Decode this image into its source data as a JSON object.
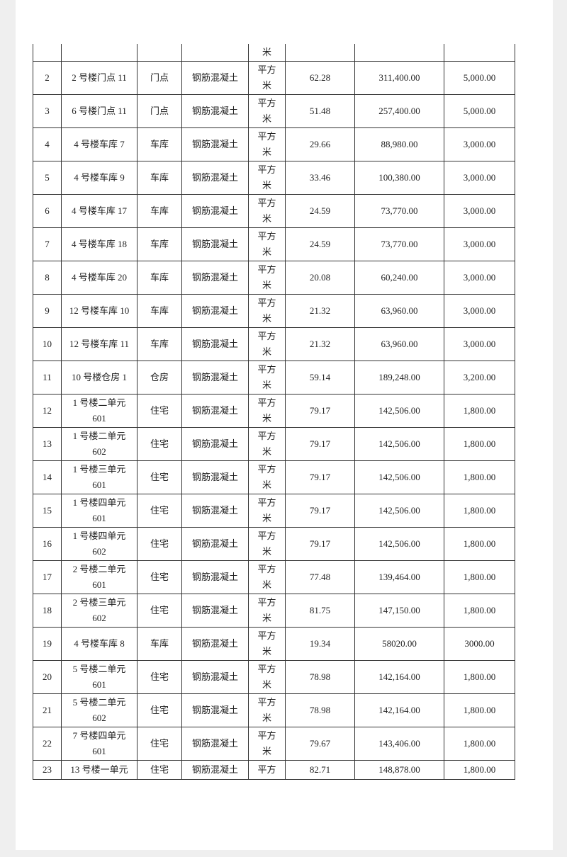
{
  "table": {
    "top_partial": {
      "unit": "米"
    },
    "rows": [
      {
        "no": "2",
        "name": "2 号楼门点 11",
        "name2": "",
        "use": "门点",
        "struct": "钢筋混凝土",
        "unit": "平方",
        "unit2": "米",
        "area": "62.28",
        "price": "311,400.00",
        "rent": "5,000.00"
      },
      {
        "no": "3",
        "name": "6 号楼门点 11",
        "name2": "",
        "use": "门点",
        "struct": "钢筋混凝土",
        "unit": "平方",
        "unit2": "米",
        "area": "51.48",
        "price": "257,400.00",
        "rent": "5,000.00"
      },
      {
        "no": "4",
        "name": "4 号楼车库 7",
        "name2": "",
        "use": "车库",
        "struct": "钢筋混凝土",
        "unit": "平方",
        "unit2": "米",
        "area": "29.66",
        "price": "88,980.00",
        "rent": "3,000.00"
      },
      {
        "no": "5",
        "name": "4 号楼车库 9",
        "name2": "",
        "use": "车库",
        "struct": "钢筋混凝土",
        "unit": "平方",
        "unit2": "米",
        "area": "33.46",
        "price": "100,380.00",
        "rent": "3,000.00"
      },
      {
        "no": "6",
        "name": "4 号楼车库 17",
        "name2": "",
        "use": "车库",
        "struct": "钢筋混凝土",
        "unit": "平方",
        "unit2": "米",
        "area": "24.59",
        "price": "73,770.00",
        "rent": "3,000.00"
      },
      {
        "no": "7",
        "name": "4 号楼车库 18",
        "name2": "",
        "use": "车库",
        "struct": "钢筋混凝土",
        "unit": "平方",
        "unit2": "米",
        "area": "24.59",
        "price": "73,770.00",
        "rent": "3,000.00"
      },
      {
        "no": "8",
        "name": "4 号楼车库 20",
        "name2": "",
        "use": "车库",
        "struct": "钢筋混凝土",
        "unit": "平方",
        "unit2": "米",
        "area": "20.08",
        "price": "60,240.00",
        "rent": "3,000.00"
      },
      {
        "no": "9",
        "name": "12 号楼车库 10",
        "name2": "",
        "use": "车库",
        "struct": "钢筋混凝土",
        "unit": "平方",
        "unit2": "米",
        "area": "21.32",
        "price": "63,960.00",
        "rent": "3,000.00"
      },
      {
        "no": "10",
        "name": "12 号楼车库 11",
        "name2": "",
        "use": "车库",
        "struct": "钢筋混凝土",
        "unit": "平方",
        "unit2": "米",
        "area": "21.32",
        "price": "63,960.00",
        "rent": "3,000.00"
      },
      {
        "no": "11",
        "name": "10 号楼仓房 1",
        "name2": "",
        "use": "仓房",
        "struct": "钢筋混凝土",
        "unit": "平方",
        "unit2": "米",
        "area": "59.14",
        "price": "189,248.00",
        "rent": "3,200.00"
      },
      {
        "no": "12",
        "name": "1 号楼二单元",
        "name2": "601",
        "use": "住宅",
        "struct": "钢筋混凝土",
        "unit": "平方",
        "unit2": "米",
        "area": "79.17",
        "price": "142,506.00",
        "rent": "1,800.00"
      },
      {
        "no": "13",
        "name": "1 号楼二单元",
        "name2": "602",
        "use": "住宅",
        "struct": "钢筋混凝土",
        "unit": "平方",
        "unit2": "米",
        "area": "79.17",
        "price": "142,506.00",
        "rent": "1,800.00"
      },
      {
        "no": "14",
        "name": "1 号楼三单元",
        "name2": "601",
        "use": "住宅",
        "struct": "钢筋混凝土",
        "unit": "平方",
        "unit2": "米",
        "area": "79.17",
        "price": "142,506.00",
        "rent": "1,800.00"
      },
      {
        "no": "15",
        "name": "1 号楼四单元",
        "name2": "601",
        "use": "住宅",
        "struct": "钢筋混凝土",
        "unit": "平方",
        "unit2": "米",
        "area": "79.17",
        "price": "142,506.00",
        "rent": "1,800.00"
      },
      {
        "no": "16",
        "name": "1 号楼四单元",
        "name2": "602",
        "use": "住宅",
        "struct": "钢筋混凝土",
        "unit": "平方",
        "unit2": "米",
        "area": "79.17",
        "price": "142,506.00",
        "rent": "1,800.00"
      },
      {
        "no": "17",
        "name": "2 号楼二单元",
        "name2": "601",
        "use": "住宅",
        "struct": "钢筋混凝土",
        "unit": "平方",
        "unit2": "米",
        "area": "77.48",
        "price": "139,464.00",
        "rent": "1,800.00"
      },
      {
        "no": "18",
        "name": "2 号楼三单元",
        "name2": "602",
        "use": "住宅",
        "struct": "钢筋混凝土",
        "unit": "平方",
        "unit2": "米",
        "area": "81.75",
        "price": "147,150.00",
        "rent": "1,800.00"
      },
      {
        "no": "19",
        "name": "4 号楼车库 8",
        "name2": "",
        "use": "车库",
        "struct": "钢筋混凝土",
        "unit": "平方",
        "unit2": "米",
        "area": "19.34",
        "price": "58020.00",
        "rent": "3000.00"
      },
      {
        "no": "20",
        "name": "5 号楼二单元",
        "name2": "601",
        "use": "住宅",
        "struct": "钢筋混凝土",
        "unit": "平方",
        "unit2": "米",
        "area": "78.98",
        "price": "142,164.00",
        "rent": "1,800.00"
      },
      {
        "no": "21",
        "name": "5 号楼二单元",
        "name2": "602",
        "use": "住宅",
        "struct": "钢筋混凝土",
        "unit": "平方",
        "unit2": "米",
        "area": "78.98",
        "price": "142,164.00",
        "rent": "1,800.00"
      },
      {
        "no": "22",
        "name": "7 号楼四单元",
        "name2": "601",
        "use": "住宅",
        "struct": "钢筋混凝土",
        "unit": "平方",
        "unit2": "米",
        "area": "79.67",
        "price": "143,406.00",
        "rent": "1,800.00"
      },
      {
        "no": "23",
        "name": "13 号楼一单元",
        "name2": "",
        "use": "住宅",
        "struct": "钢筋混凝土",
        "unit": "平方",
        "unit2": "",
        "area": "82.71",
        "price": "148,878.00",
        "rent": "1,800.00"
      }
    ]
  }
}
